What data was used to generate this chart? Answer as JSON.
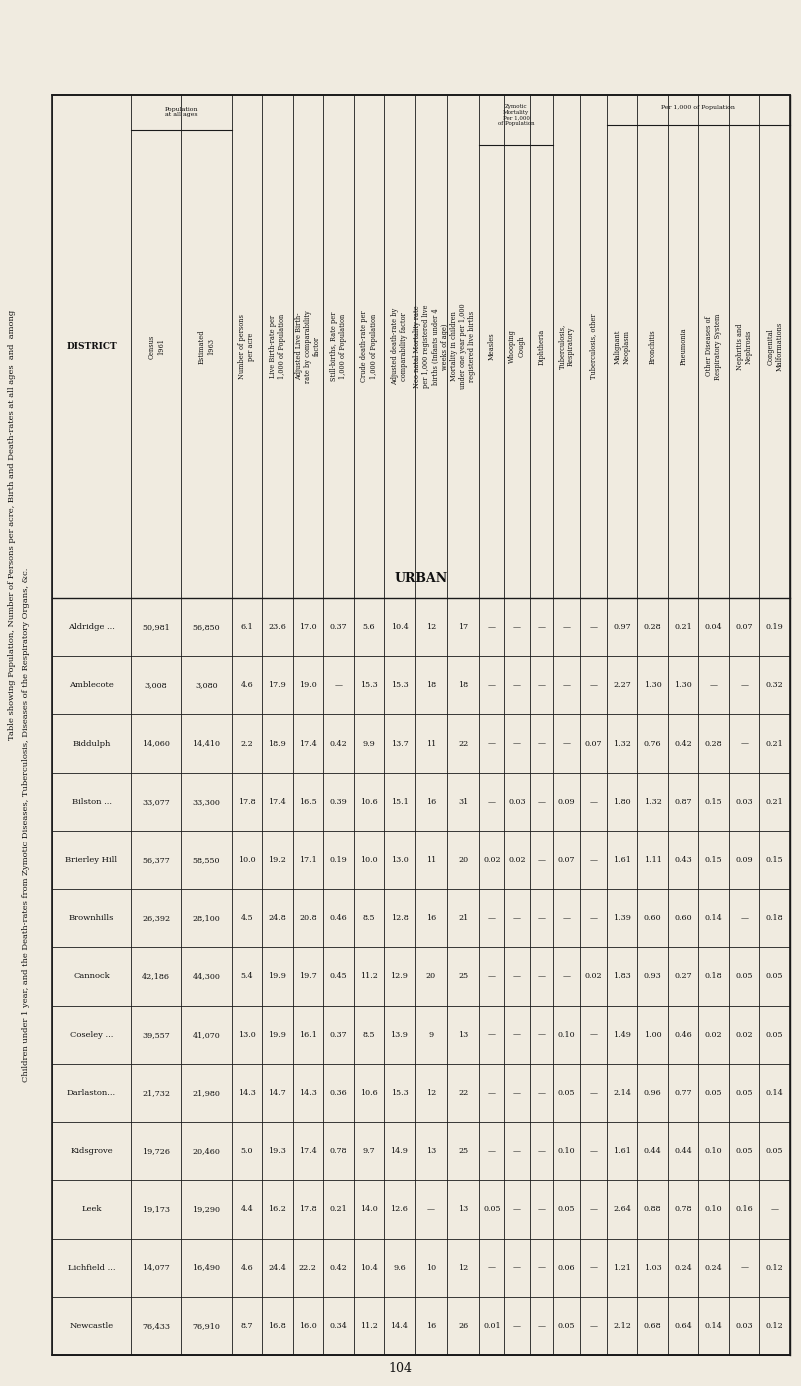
{
  "title_line1": "Table showing Population, Number of Persons per acre, Birth and Death-rates at all ages  and  among",
  "title_line2": "Children under 1 year, and the Death-rates from Zymotic Diseases, Tuberculosis, Diseases of the Respiratory Organs, éàc.",
  "subtitle": "URBAN",
  "districts": [
    "Aldridge ...",
    "Amblecote",
    "Biddulph",
    "Bilston ...",
    "Brierley Hill",
    "Brownhills",
    "Cannock",
    "Coseley ...",
    "Darlaston...",
    "Kidsgrove",
    "Leek",
    "Lichfield ...",
    "Newcastle"
  ],
  "pop_census_1961": [
    "50,981",
    "3,008",
    "14,060",
    "33,077",
    "56,377",
    "26,392",
    "42,186",
    "39,557",
    "21,732",
    "19,726",
    "19,173",
    "14,077",
    "76,433"
  ],
  "pop_est_1963": [
    "56,850",
    "3,080",
    "14,410",
    "33,300",
    "58,550",
    "28,100",
    "44,300",
    "41,070",
    "21,980",
    "20,460",
    "19,290",
    "16,490",
    "76,910"
  ],
  "persons_per_acre": [
    "6.1",
    "4.6",
    "2.2",
    "17.8",
    "10.0",
    "4.5",
    "5.4",
    "13.0",
    "14.3",
    "5.0",
    "4.4",
    "4.6",
    "8.7"
  ],
  "live_birth_rate": [
    "23.6",
    "17.9",
    "18.9",
    "17.4",
    "19.2",
    "24.8",
    "19.9",
    "19.9",
    "14.7",
    "19.3",
    "16.2",
    "24.4",
    "16.8"
  ],
  "adj_live_birth_rate": [
    "17.0",
    "19.0",
    "17.4",
    "16.5",
    "17.1",
    "20.8",
    "19.7",
    "16.1",
    "14.3",
    "17.4",
    "17.8",
    "22.2",
    "16.0"
  ],
  "still_births_rate": [
    "0.37",
    "",
    "0.42",
    "0.39",
    "0.19",
    "0.46",
    "0.45",
    "0.37",
    "0.36",
    "0.78",
    "0.21",
    "0.42",
    "0.34"
  ],
  "crude_death_rate": [
    "5.6",
    "15.3",
    "9.9",
    "10.6",
    "10.0",
    "8.5",
    "11.2",
    "8.5",
    "10.6",
    "9.7",
    "14.0",
    "10.4",
    "11.2"
  ],
  "adj_death_rate": [
    "10.4",
    "15.3",
    "13.7",
    "15.1",
    "13.0",
    "12.8",
    "12.9",
    "13.9",
    "15.3",
    "14.9",
    "12.6",
    "9.6",
    "14.4"
  ],
  "neo_natal_mortality": [
    "12",
    "18",
    "11",
    "16",
    "11",
    "16",
    "20",
    "9",
    "12",
    "13",
    "",
    "10",
    "16"
  ],
  "child_mortality": [
    "17",
    "18",
    "22",
    "31",
    "20",
    "21",
    "25",
    "13",
    "22",
    "25",
    "13",
    "12",
    "26"
  ],
  "measles": [
    "",
    "",
    "",
    "",
    "0.02",
    "",
    "",
    "",
    "",
    "",
    "0.05",
    "",
    "0.01"
  ],
  "whooping_cough": [
    "",
    "",
    "",
    "0.03",
    "0.02",
    "",
    "",
    "",
    "",
    "",
    "",
    "",
    ""
  ],
  "diphtheria": [
    "",
    "",
    "",
    "",
    "",
    "",
    "",
    "",
    "",
    "",
    "",
    "",
    ""
  ],
  "tb_respiratory": [
    "",
    "",
    "",
    "0.09",
    "0.07",
    "",
    "",
    "0.10",
    "0.05",
    "0.10",
    "0.05",
    "0.06",
    "0.05"
  ],
  "tb_other": [
    "",
    "",
    "0.07",
    "",
    "",
    "",
    "0.02",
    "",
    "",
    "",
    "",
    "",
    ""
  ],
  "malignant_neoplasm": [
    "0.97",
    "2.27",
    "1.32",
    "1.80",
    "1.61",
    "1.39",
    "1.83",
    "1.49",
    "2.14",
    "1.61",
    "2.64",
    "1.21",
    "2.12"
  ],
  "bronchitis": [
    "0.28",
    "1.30",
    "0.76",
    "1.32",
    "1.11",
    "0.60",
    "0.93",
    "1.00",
    "0.96",
    "0.44",
    "0.88",
    "1.03",
    "0.68"
  ],
  "pneumonia": [
    "0.21",
    "1.30",
    "0.42",
    "0.87",
    "0.43",
    "0.60",
    "0.27",
    "0.46",
    "0.77",
    "0.44",
    "0.78",
    "0.24",
    "0.64"
  ],
  "other_respiratory": [
    "0.04",
    "",
    "0.28",
    "0.15",
    "0.15",
    "0.14",
    "0.18",
    "0.02",
    "0.05",
    "0.10",
    "0.10",
    "0.24",
    "0.14"
  ],
  "nephritis_nephrosis": [
    "0.07",
    "",
    "",
    "0.03",
    "0.09",
    "",
    "0.05",
    "0.02",
    "0.05",
    "0.05",
    "0.16",
    "",
    "0.03"
  ],
  "congenital_malformations": [
    "0.19",
    "0.32",
    "0.21",
    "0.21",
    "0.15",
    "0.18",
    "0.05",
    "0.05",
    "0.14",
    "0.05",
    "",
    "0.12",
    "0.12"
  ],
  "bg_color": "#f0ebe0",
  "line_color": "#1a1a1a",
  "text_color": "#111111",
  "page_number": "104"
}
